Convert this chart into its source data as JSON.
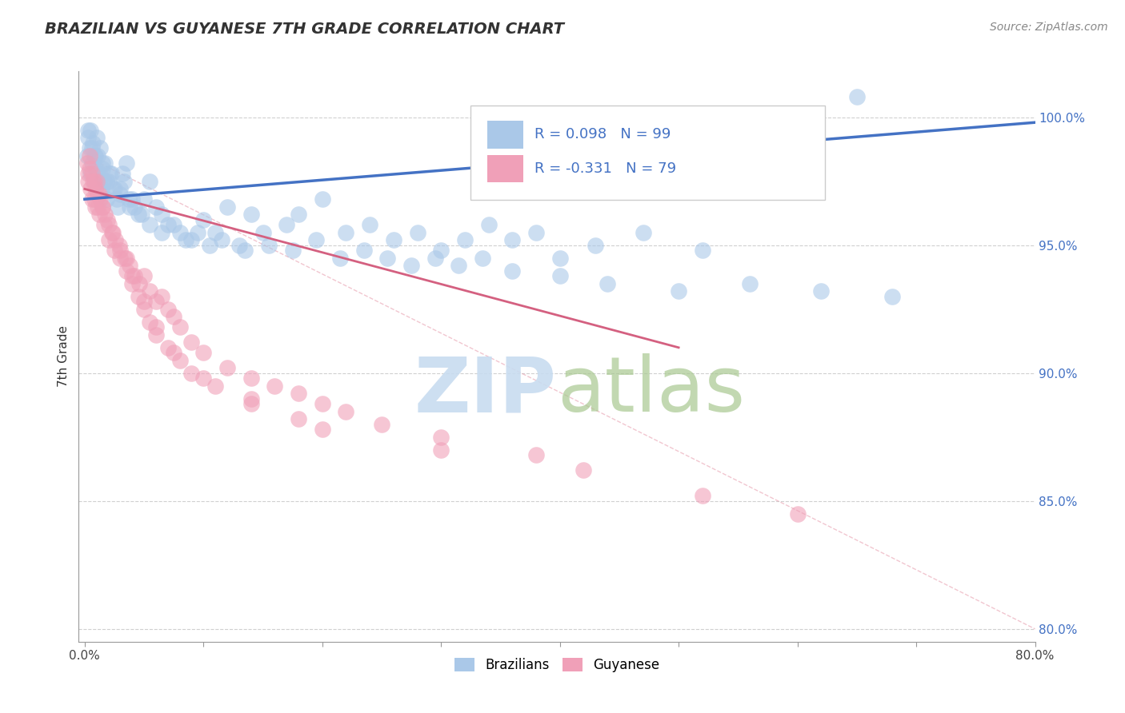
{
  "title": "BRAZILIAN VS GUYANESE 7TH GRADE CORRELATION CHART",
  "source": "Source: ZipAtlas.com",
  "xlabel_vals": [
    0.0,
    10.0,
    20.0,
    30.0,
    40.0,
    50.0,
    60.0,
    70.0,
    80.0
  ],
  "xlabel_labels": [
    "0.0%",
    "",
    "",
    "",
    "",
    "",
    "",
    "",
    "80.0%"
  ],
  "ylabel_vals": [
    80.0,
    85.0,
    90.0,
    95.0,
    100.0
  ],
  "ylabel_labels": [
    "80.0%",
    "85.0%",
    "90.0%",
    "95.0%",
    "100.0%"
  ],
  "xmin": -0.5,
  "xmax": 80.0,
  "ymin": 79.5,
  "ymax": 101.8,
  "blue_R": 0.098,
  "blue_N": 99,
  "pink_R": -0.331,
  "pink_N": 79,
  "blue_color": "#aac8e8",
  "pink_color": "#f0a0b8",
  "blue_line_color": "#4472c4",
  "pink_line_color": "#d46080",
  "blue_scatter_x": [
    0.2,
    0.3,
    0.4,
    0.5,
    0.5,
    0.6,
    0.7,
    0.8,
    0.8,
    0.9,
    1.0,
    1.0,
    1.1,
    1.2,
    1.3,
    1.4,
    1.5,
    1.6,
    1.7,
    1.8,
    2.0,
    2.2,
    2.5,
    2.8,
    3.0,
    3.2,
    3.5,
    3.8,
    4.0,
    4.5,
    5.0,
    5.5,
    6.0,
    6.5,
    7.0,
    8.0,
    9.0,
    10.0,
    11.0,
    12.0,
    13.0,
    14.0,
    15.0,
    17.0,
    18.0,
    20.0,
    22.0,
    24.0,
    26.0,
    28.0,
    30.0,
    32.0,
    34.0,
    36.0,
    38.0,
    40.0,
    43.0,
    47.0,
    52.0,
    65.0,
    0.3,
    0.6,
    0.9,
    1.2,
    1.5,
    1.8,
    2.1,
    2.4,
    2.7,
    3.0,
    3.3,
    3.7,
    4.2,
    4.8,
    5.5,
    6.5,
    7.5,
    8.5,
    9.5,
    10.5,
    11.5,
    13.5,
    15.5,
    17.5,
    19.5,
    21.5,
    23.5,
    25.5,
    27.5,
    29.5,
    31.5,
    33.5,
    36.0,
    40.0,
    44.0,
    50.0,
    56.0,
    62.0,
    68.0
  ],
  "blue_scatter_y": [
    98.5,
    99.2,
    98.8,
    99.5,
    97.8,
    98.2,
    99.0,
    98.5,
    97.5,
    98.0,
    99.2,
    97.8,
    98.5,
    97.5,
    98.8,
    97.2,
    98.0,
    97.5,
    98.2,
    96.8,
    97.5,
    97.8,
    97.2,
    96.5,
    97.0,
    97.8,
    98.2,
    96.5,
    96.8,
    96.2,
    96.8,
    97.5,
    96.5,
    96.2,
    95.8,
    95.5,
    95.2,
    96.0,
    95.5,
    96.5,
    95.0,
    96.2,
    95.5,
    95.8,
    96.2,
    96.8,
    95.5,
    95.8,
    95.2,
    95.5,
    94.8,
    95.2,
    95.8,
    95.2,
    95.5,
    94.5,
    95.0,
    95.5,
    94.8,
    100.8,
    99.5,
    98.8,
    98.5,
    97.8,
    98.2,
    97.5,
    97.8,
    97.2,
    96.8,
    97.2,
    97.5,
    96.8,
    96.5,
    96.2,
    95.8,
    95.5,
    95.8,
    95.2,
    95.5,
    95.0,
    95.2,
    94.8,
    95.0,
    94.8,
    95.2,
    94.5,
    94.8,
    94.5,
    94.2,
    94.5,
    94.2,
    94.5,
    94.0,
    93.8,
    93.5,
    93.2,
    93.5,
    93.2,
    93.0
  ],
  "pink_scatter_x": [
    0.2,
    0.3,
    0.4,
    0.5,
    0.6,
    0.7,
    0.8,
    0.9,
    1.0,
    1.1,
    1.2,
    1.3,
    1.5,
    1.7,
    2.0,
    2.3,
    2.6,
    3.0,
    3.4,
    3.8,
    4.2,
    4.6,
    5.0,
    5.5,
    6.0,
    6.5,
    7.0,
    7.5,
    8.0,
    9.0,
    10.0,
    12.0,
    14.0,
    16.0,
    18.0,
    20.0,
    22.0,
    25.0,
    30.0,
    38.0,
    0.3,
    0.6,
    0.9,
    1.2,
    1.6,
    2.0,
    2.5,
    3.0,
    3.5,
    4.0,
    4.5,
    5.0,
    5.5,
    6.0,
    7.0,
    8.0,
    9.0,
    11.0,
    14.0,
    18.0,
    0.4,
    0.8,
    1.1,
    1.5,
    1.9,
    2.4,
    2.9,
    3.5,
    4.0,
    5.0,
    6.0,
    7.5,
    10.0,
    14.0,
    20.0,
    30.0,
    42.0,
    52.0,
    60.0
  ],
  "pink_scatter_y": [
    98.2,
    97.8,
    98.5,
    97.2,
    97.8,
    97.5,
    96.8,
    97.2,
    97.5,
    96.5,
    97.0,
    96.8,
    96.5,
    96.2,
    95.8,
    95.5,
    95.2,
    94.8,
    94.5,
    94.2,
    93.8,
    93.5,
    93.8,
    93.2,
    92.8,
    93.0,
    92.5,
    92.2,
    91.8,
    91.2,
    90.8,
    90.2,
    89.8,
    89.5,
    89.2,
    88.8,
    88.5,
    88.0,
    87.5,
    86.8,
    97.5,
    96.8,
    96.5,
    96.2,
    95.8,
    95.2,
    94.8,
    94.5,
    94.0,
    93.5,
    93.0,
    92.5,
    92.0,
    91.5,
    91.0,
    90.5,
    90.0,
    89.5,
    89.0,
    88.2,
    98.0,
    97.5,
    97.0,
    96.5,
    96.0,
    95.5,
    95.0,
    94.5,
    93.8,
    92.8,
    91.8,
    90.8,
    89.8,
    88.8,
    87.8,
    87.0,
    86.2,
    85.2,
    84.5
  ],
  "blue_trend_x0": 0.0,
  "blue_trend_x1": 80.0,
  "blue_trend_y0": 96.8,
  "blue_trend_y1": 99.8,
  "pink_trend_x0": 0.0,
  "pink_trend_x1": 50.0,
  "pink_trend_y0": 97.2,
  "pink_trend_y1": 91.0,
  "diag_x0": 0.0,
  "diag_x1": 80.0,
  "diag_y0": 98.5,
  "diag_y1": 80.0
}
